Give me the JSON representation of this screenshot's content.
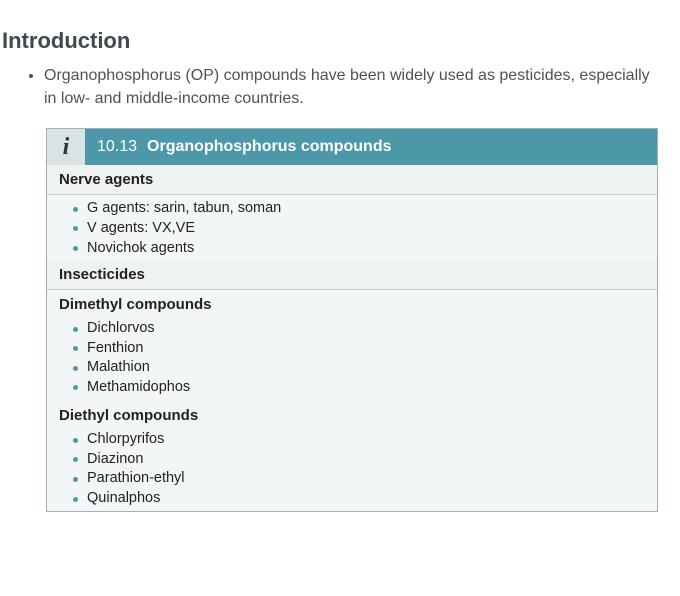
{
  "colors": {
    "header_bg": "#4c97a8",
    "header_text": "#ffffff",
    "icon_cell_bg": "#d9e3e6",
    "box_bg": "#f3f6f7",
    "box_border": "#9fb3ba",
    "bullet": "#4c97a8",
    "heading_text": "#3f4a4f",
    "body_text": "#4a5358",
    "section_divider": "#c9d3d6"
  },
  "page": {
    "title": "Introduction",
    "intro_bullets": [
      "Organophosphorus (OP) compounds have been widely used as pesticides, especially in low- and middle-income countries."
    ]
  },
  "infobox": {
    "icon_glyph": "i",
    "number": "10.13",
    "title": "Organophosphorus compounds",
    "sections": [
      {
        "heading": "Nerve agents",
        "items": [
          "G agents: sarin, tabun, soman",
          "V agents: VX,VE",
          "Novichok agents"
        ]
      },
      {
        "heading": "Insecticides",
        "subsections": [
          {
            "heading": "Dimethyl compounds",
            "items": [
              "Dichlorvos",
              "Fenthion",
              "Malathion",
              "Methamidophos"
            ]
          },
          {
            "heading": "Diethyl compounds",
            "items": [
              "Chlorpyrifos",
              "Diazinon",
              "Parathion-ethyl",
              "Quinalphos"
            ]
          }
        ]
      }
    ]
  }
}
